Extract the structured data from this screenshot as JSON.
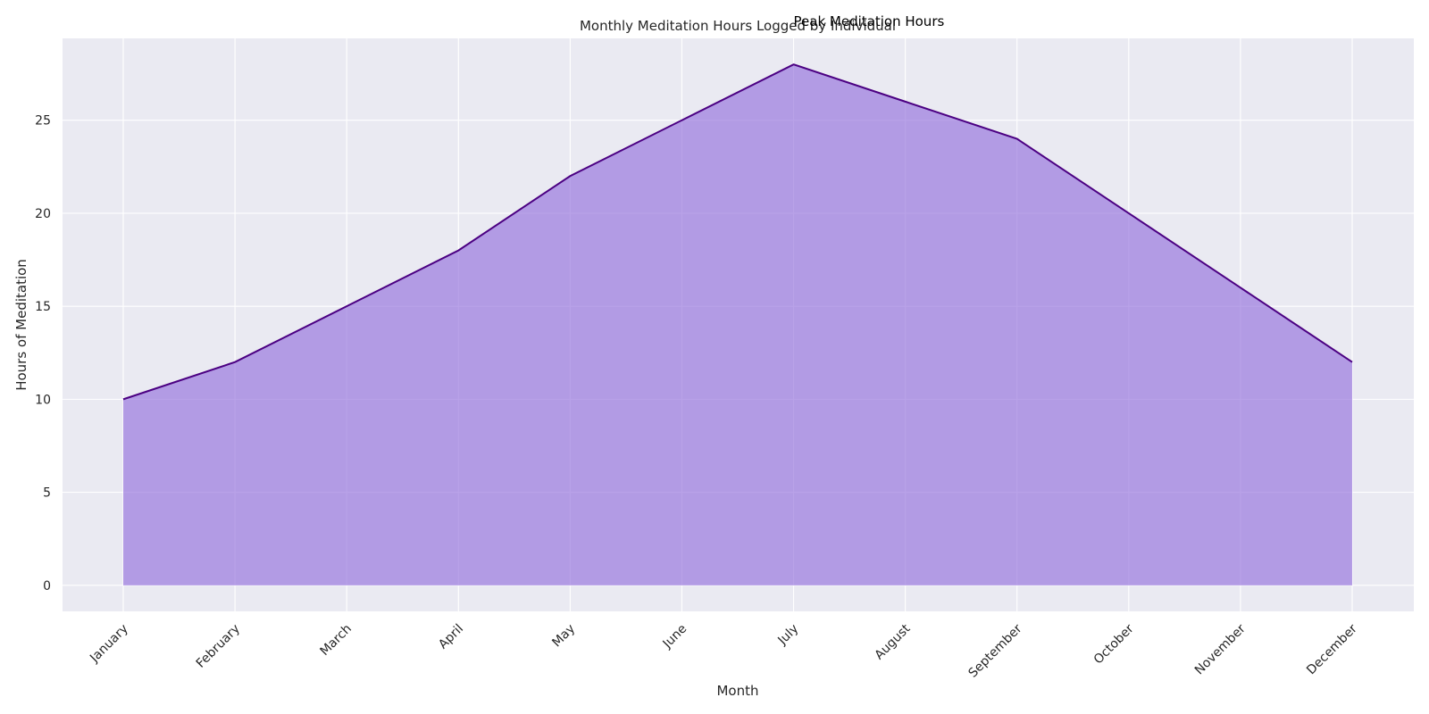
{
  "chart_data": {
    "type": "area",
    "title": "Monthly Meditation Hours Logged by Individual",
    "xlabel": "Month",
    "ylabel": "Hours of Meditation",
    "categories": [
      "January",
      "February",
      "March",
      "April",
      "May",
      "June",
      "July",
      "August",
      "September",
      "October",
      "November",
      "December"
    ],
    "series": [
      {
        "values": [
          10,
          12,
          15,
          18,
          22,
          25,
          28,
          26,
          24,
          20,
          16,
          12
        ]
      }
    ],
    "ylim": [
      -1.4,
      29.4
    ],
    "yticks": [
      0,
      5,
      10,
      15,
      20,
      25
    ],
    "grid": true,
    "annotations": [
      {
        "text": "Peak Meditation Hours",
        "category": "July",
        "value": 28
      }
    ],
    "colors": {
      "line": "#4b0082",
      "fill": "#9370db",
      "background": "#eaeaf2",
      "grid": "#ffffff"
    }
  }
}
